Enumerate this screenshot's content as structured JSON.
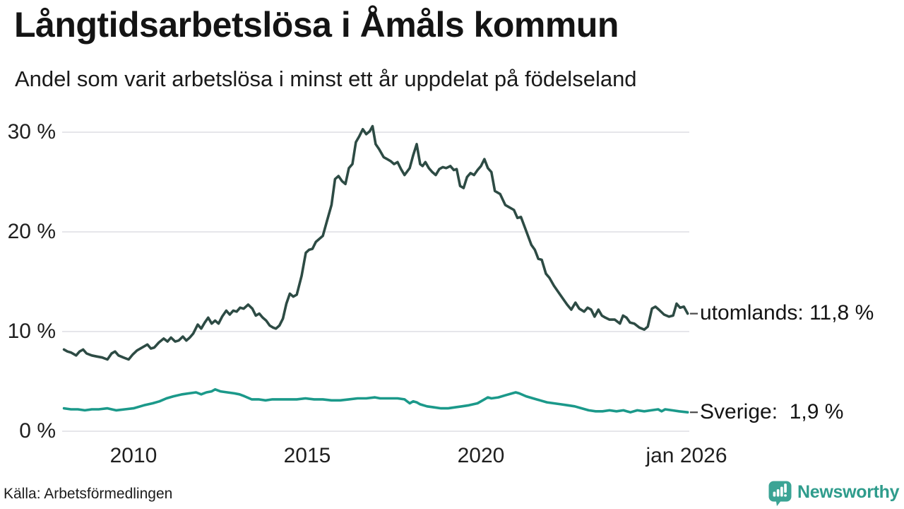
{
  "colors": {
    "background": "#ffffff",
    "grid": "#e6e6ea",
    "text": "#1a1a1a",
    "leader_dash": "#4a4a4a",
    "utomlands_line": "#2d4b44",
    "sverige_line": "#1b998a",
    "brand_teal": "#3ba495",
    "brand_text": "#2f9c8c"
  },
  "footer": {
    "source": "Källa: Arbetsförmedlingen",
    "brand": "Newsworthy",
    "brand_icon": "newsworthy-speech-bubble-bar-chart-icon"
  },
  "chart_data": {
    "type": "line",
    "title": "Långtidsarbetslösa i Åmåls kommun",
    "subtitle": "Andel som varit arbetslösa i minst ett år uppdelat på födelseland",
    "unit": "%",
    "number_format": "decimal-comma",
    "grid": "horizontal-only",
    "legend_position": "end-of-line-labels-right",
    "x_axis": {
      "range": [
        2008.0,
        2026.05
      ],
      "ticks": [
        {
          "year": 2010,
          "label": "2010"
        },
        {
          "year": 2015,
          "label": "2015"
        },
        {
          "year": 2020,
          "label": "2020"
        },
        {
          "year": 2026,
          "label": "jan 2026"
        }
      ]
    },
    "y_axis": {
      "range": [
        0,
        31.5
      ],
      "ticks": [
        {
          "value": 30,
          "label": "30 %"
        },
        {
          "value": 20,
          "label": "20 %"
        },
        {
          "value": 10,
          "label": "10 %"
        },
        {
          "value": 0,
          "label": "0 %"
        }
      ]
    },
    "series": [
      {
        "id": "utomlands",
        "name": "utomlands",
        "end_label": "utomlands: 11,8 %",
        "last_value": "11,8 %",
        "color": "#2d4b44",
        "points": [
          [
            2008.0,
            8.2
          ],
          [
            2008.1,
            8.0
          ],
          [
            2008.2,
            7.9
          ],
          [
            2008.35,
            7.6
          ],
          [
            2008.45,
            8.0
          ],
          [
            2008.55,
            8.2
          ],
          [
            2008.65,
            7.8
          ],
          [
            2008.8,
            7.6
          ],
          [
            2008.95,
            7.5
          ],
          [
            2009.1,
            7.4
          ],
          [
            2009.25,
            7.2
          ],
          [
            2009.37,
            7.8
          ],
          [
            2009.47,
            8.0
          ],
          [
            2009.57,
            7.6
          ],
          [
            2009.71,
            7.4
          ],
          [
            2009.86,
            7.2
          ],
          [
            2009.98,
            7.7
          ],
          [
            2010.1,
            8.1
          ],
          [
            2010.25,
            8.4
          ],
          [
            2010.4,
            8.7
          ],
          [
            2010.5,
            8.3
          ],
          [
            2010.6,
            8.4
          ],
          [
            2010.73,
            8.9
          ],
          [
            2010.87,
            9.3
          ],
          [
            2010.98,
            9.0
          ],
          [
            2011.08,
            9.4
          ],
          [
            2011.2,
            9.0
          ],
          [
            2011.3,
            9.1
          ],
          [
            2011.42,
            9.5
          ],
          [
            2011.52,
            9.1
          ],
          [
            2011.62,
            9.4
          ],
          [
            2011.72,
            9.8
          ],
          [
            2011.85,
            10.7
          ],
          [
            2011.95,
            10.3
          ],
          [
            2012.05,
            10.9
          ],
          [
            2012.15,
            11.4
          ],
          [
            2012.25,
            10.8
          ],
          [
            2012.35,
            11.1
          ],
          [
            2012.45,
            10.8
          ],
          [
            2012.55,
            11.5
          ],
          [
            2012.67,
            12.1
          ],
          [
            2012.77,
            11.7
          ],
          [
            2012.87,
            12.1
          ],
          [
            2012.97,
            12.0
          ],
          [
            2013.07,
            12.4
          ],
          [
            2013.17,
            12.3
          ],
          [
            2013.3,
            12.7
          ],
          [
            2013.42,
            12.3
          ],
          [
            2013.52,
            11.6
          ],
          [
            2013.62,
            11.8
          ],
          [
            2013.72,
            11.4
          ],
          [
            2013.82,
            11.1
          ],
          [
            2013.92,
            10.6
          ],
          [
            2014.02,
            10.4
          ],
          [
            2014.1,
            10.3
          ],
          [
            2014.2,
            10.6
          ],
          [
            2014.3,
            11.3
          ],
          [
            2014.4,
            12.8
          ],
          [
            2014.5,
            13.8
          ],
          [
            2014.6,
            13.5
          ],
          [
            2014.7,
            13.7
          ],
          [
            2014.84,
            15.6
          ],
          [
            2014.96,
            17.9
          ],
          [
            2015.05,
            18.2
          ],
          [
            2015.15,
            18.3
          ],
          [
            2015.25,
            19.0
          ],
          [
            2015.35,
            19.3
          ],
          [
            2015.45,
            19.6
          ],
          [
            2015.57,
            21.1
          ],
          [
            2015.7,
            22.7
          ],
          [
            2015.8,
            25.3
          ],
          [
            2015.9,
            25.6
          ],
          [
            2016.0,
            25.1
          ],
          [
            2016.1,
            24.8
          ],
          [
            2016.2,
            26.4
          ],
          [
            2016.3,
            26.8
          ],
          [
            2016.4,
            29.0
          ],
          [
            2016.5,
            29.6
          ],
          [
            2016.6,
            30.3
          ],
          [
            2016.7,
            29.8
          ],
          [
            2016.8,
            30.1
          ],
          [
            2016.88,
            30.6
          ],
          [
            2016.97,
            28.8
          ],
          [
            2017.07,
            28.3
          ],
          [
            2017.2,
            27.5
          ],
          [
            2017.3,
            27.3
          ],
          [
            2017.4,
            27.1
          ],
          [
            2017.5,
            26.8
          ],
          [
            2017.6,
            27.0
          ],
          [
            2017.7,
            26.3
          ],
          [
            2017.8,
            25.7
          ],
          [
            2017.95,
            26.4
          ],
          [
            2018.05,
            27.7
          ],
          [
            2018.15,
            28.8
          ],
          [
            2018.25,
            26.8
          ],
          [
            2018.32,
            26.6
          ],
          [
            2018.4,
            27.0
          ],
          [
            2018.5,
            26.4
          ],
          [
            2018.6,
            26.0
          ],
          [
            2018.7,
            25.7
          ],
          [
            2018.8,
            26.3
          ],
          [
            2018.9,
            26.5
          ],
          [
            2019.0,
            26.4
          ],
          [
            2019.12,
            26.6
          ],
          [
            2019.22,
            26.2
          ],
          [
            2019.3,
            26.3
          ],
          [
            2019.4,
            24.6
          ],
          [
            2019.5,
            24.4
          ],
          [
            2019.6,
            25.5
          ],
          [
            2019.7,
            25.9
          ],
          [
            2019.8,
            25.7
          ],
          [
            2019.9,
            26.2
          ],
          [
            2020.0,
            26.6
          ],
          [
            2020.1,
            27.3
          ],
          [
            2020.2,
            26.4
          ],
          [
            2020.3,
            26.0
          ],
          [
            2020.4,
            24.1
          ],
          [
            2020.55,
            23.8
          ],
          [
            2020.7,
            22.7
          ],
          [
            2020.8,
            22.5
          ],
          [
            2020.95,
            22.2
          ],
          [
            2021.05,
            21.4
          ],
          [
            2021.15,
            21.5
          ],
          [
            2021.3,
            20.1
          ],
          [
            2021.45,
            18.7
          ],
          [
            2021.55,
            18.2
          ],
          [
            2021.65,
            17.3
          ],
          [
            2021.75,
            17.2
          ],
          [
            2021.87,
            15.8
          ],
          [
            2021.97,
            15.4
          ],
          [
            2022.1,
            14.6
          ],
          [
            2022.22,
            14.0
          ],
          [
            2022.36,
            13.3
          ],
          [
            2022.48,
            12.7
          ],
          [
            2022.6,
            12.2
          ],
          [
            2022.72,
            12.9
          ],
          [
            2022.83,
            12.3
          ],
          [
            2022.97,
            12.0
          ],
          [
            2023.07,
            12.4
          ],
          [
            2023.17,
            12.2
          ],
          [
            2023.27,
            11.5
          ],
          [
            2023.38,
            12.2
          ],
          [
            2023.48,
            11.6
          ],
          [
            2023.58,
            11.4
          ],
          [
            2023.7,
            11.2
          ],
          [
            2023.85,
            11.2
          ],
          [
            2024.0,
            10.8
          ],
          [
            2024.09,
            11.6
          ],
          [
            2024.19,
            11.4
          ],
          [
            2024.29,
            10.9
          ],
          [
            2024.41,
            10.8
          ],
          [
            2024.56,
            10.4
          ],
          [
            2024.7,
            10.2
          ],
          [
            2024.8,
            10.5
          ],
          [
            2024.92,
            12.3
          ],
          [
            2025.02,
            12.5
          ],
          [
            2025.12,
            12.2
          ],
          [
            2025.27,
            11.7
          ],
          [
            2025.41,
            11.5
          ],
          [
            2025.53,
            11.6
          ],
          [
            2025.63,
            12.8
          ],
          [
            2025.73,
            12.4
          ],
          [
            2025.84,
            12.5
          ],
          [
            2025.95,
            11.8
          ]
        ]
      },
      {
        "id": "sverige",
        "name": "Sverige",
        "end_label": "Sverige:  1,9 %",
        "last_value": "1,9 %",
        "color": "#1b998a",
        "points": [
          [
            2008.0,
            2.3
          ],
          [
            2008.2,
            2.2
          ],
          [
            2008.4,
            2.2
          ],
          [
            2008.6,
            2.1
          ],
          [
            2008.8,
            2.2
          ],
          [
            2009.0,
            2.2
          ],
          [
            2009.25,
            2.3
          ],
          [
            2009.5,
            2.1
          ],
          [
            2009.75,
            2.2
          ],
          [
            2010.0,
            2.3
          ],
          [
            2010.3,
            2.6
          ],
          [
            2010.55,
            2.8
          ],
          [
            2010.75,
            3.0
          ],
          [
            2010.95,
            3.3
          ],
          [
            2011.15,
            3.5
          ],
          [
            2011.4,
            3.7
          ],
          [
            2011.6,
            3.8
          ],
          [
            2011.8,
            3.9
          ],
          [
            2011.95,
            3.7
          ],
          [
            2012.1,
            3.9
          ],
          [
            2012.25,
            4.0
          ],
          [
            2012.35,
            4.2
          ],
          [
            2012.5,
            4.0
          ],
          [
            2012.7,
            3.9
          ],
          [
            2012.9,
            3.8
          ],
          [
            2013.05,
            3.7
          ],
          [
            2013.2,
            3.5
          ],
          [
            2013.4,
            3.2
          ],
          [
            2013.6,
            3.2
          ],
          [
            2013.8,
            3.1
          ],
          [
            2014.0,
            3.2
          ],
          [
            2014.2,
            3.2
          ],
          [
            2014.45,
            3.2
          ],
          [
            2014.7,
            3.2
          ],
          [
            2014.95,
            3.3
          ],
          [
            2015.2,
            3.2
          ],
          [
            2015.45,
            3.2
          ],
          [
            2015.7,
            3.1
          ],
          [
            2015.95,
            3.1
          ],
          [
            2016.2,
            3.2
          ],
          [
            2016.45,
            3.3
          ],
          [
            2016.7,
            3.3
          ],
          [
            2016.95,
            3.4
          ],
          [
            2017.1,
            3.3
          ],
          [
            2017.4,
            3.3
          ],
          [
            2017.6,
            3.3
          ],
          [
            2017.8,
            3.2
          ],
          [
            2017.95,
            2.8
          ],
          [
            2018.05,
            3.0
          ],
          [
            2018.15,
            2.9
          ],
          [
            2018.25,
            2.7
          ],
          [
            2018.45,
            2.5
          ],
          [
            2018.65,
            2.4
          ],
          [
            2018.85,
            2.3
          ],
          [
            2019.05,
            2.3
          ],
          [
            2019.25,
            2.4
          ],
          [
            2019.45,
            2.5
          ],
          [
            2019.65,
            2.6
          ],
          [
            2019.9,
            2.8
          ],
          [
            2020.1,
            3.2
          ],
          [
            2020.2,
            3.4
          ],
          [
            2020.3,
            3.3
          ],
          [
            2020.5,
            3.4
          ],
          [
            2020.7,
            3.6
          ],
          [
            2020.9,
            3.8
          ],
          [
            2021.0,
            3.9
          ],
          [
            2021.1,
            3.8
          ],
          [
            2021.3,
            3.5
          ],
          [
            2021.5,
            3.3
          ],
          [
            2021.7,
            3.1
          ],
          [
            2021.9,
            2.9
          ],
          [
            2022.1,
            2.8
          ],
          [
            2022.3,
            2.7
          ],
          [
            2022.5,
            2.6
          ],
          [
            2022.7,
            2.5
          ],
          [
            2022.9,
            2.3
          ],
          [
            2023.1,
            2.1
          ],
          [
            2023.3,
            2.0
          ],
          [
            2023.5,
            2.0
          ],
          [
            2023.7,
            2.1
          ],
          [
            2023.9,
            2.0
          ],
          [
            2024.1,
            2.1
          ],
          [
            2024.3,
            1.9
          ],
          [
            2024.5,
            2.1
          ],
          [
            2024.7,
            2.0
          ],
          [
            2024.9,
            2.1
          ],
          [
            2025.1,
            2.2
          ],
          [
            2025.2,
            2.0
          ],
          [
            2025.3,
            2.2
          ],
          [
            2025.5,
            2.1
          ],
          [
            2025.7,
            2.0
          ],
          [
            2025.95,
            1.9
          ]
        ]
      }
    ]
  }
}
